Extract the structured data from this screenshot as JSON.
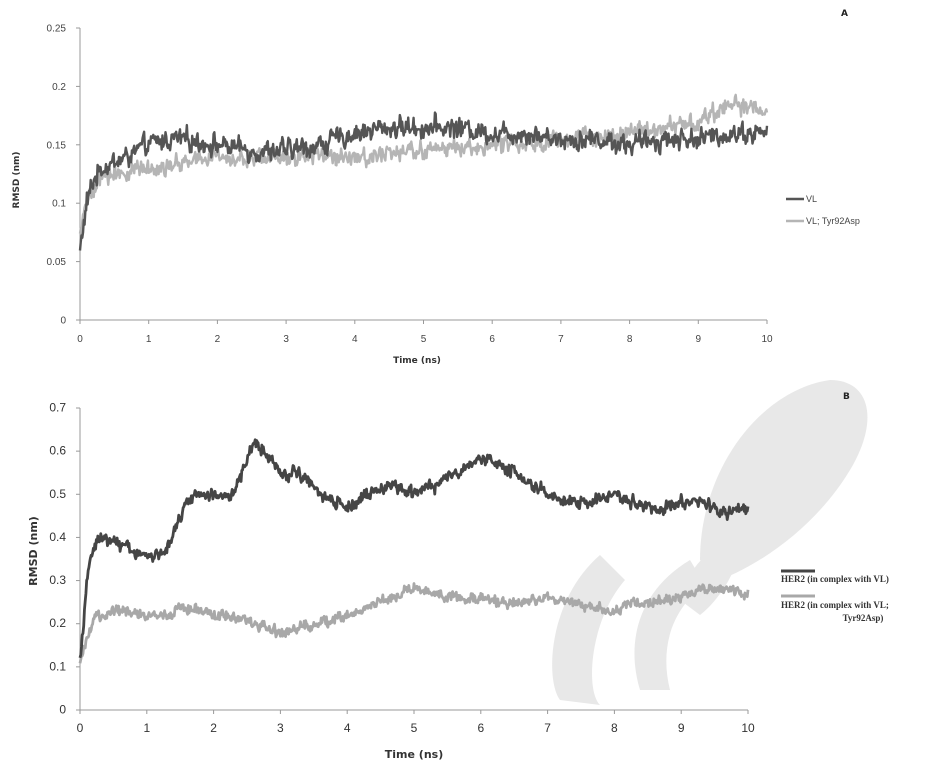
{
  "chart_data": [
    {
      "type": "line",
      "panel_label": "A",
      "xlabel": "Time (ns)",
      "ylabel": "RMSD (nm)",
      "xlim": [
        0,
        10
      ],
      "ylim": [
        0,
        0.25
      ],
      "x_ticks": [
        "0",
        "1",
        "2",
        "3",
        "4",
        "5",
        "6",
        "7",
        "8",
        "9",
        "10"
      ],
      "y_ticks": [
        "0",
        "0.05",
        "0.1",
        "0.15",
        "0.2",
        "0.25"
      ],
      "legend_position": "right",
      "series": [
        {
          "name": "VL",
          "color": "#555555",
          "x": [
            0,
            0.05,
            0.1,
            0.2,
            0.3,
            0.5,
            0.7,
            1,
            1.3,
            1.5,
            2,
            2.5,
            3,
            3.5,
            4,
            4.5,
            5,
            5.5,
            6,
            6.5,
            7,
            7.5,
            8,
            8.5,
            9,
            9.5,
            10
          ],
          "y": [
            0.06,
            0.08,
            0.1,
            0.12,
            0.13,
            0.135,
            0.14,
            0.15,
            0.155,
            0.155,
            0.15,
            0.145,
            0.145,
            0.15,
            0.16,
            0.165,
            0.165,
            0.165,
            0.16,
            0.16,
            0.155,
            0.155,
            0.15,
            0.155,
            0.155,
            0.16,
            0.16
          ],
          "noise": 0.012
        },
        {
          "name": "VL; Tyr92Asp",
          "color": "#b5b5b5",
          "x": [
            0,
            0.05,
            0.1,
            0.2,
            0.3,
            0.5,
            0.7,
            1,
            1.3,
            1.5,
            2,
            2.5,
            3,
            3.5,
            4,
            4.5,
            5,
            5.5,
            6,
            6.5,
            7,
            7.5,
            8,
            8.5,
            9,
            9.5,
            10
          ],
          "y": [
            0.07,
            0.09,
            0.1,
            0.11,
            0.12,
            0.125,
            0.128,
            0.13,
            0.133,
            0.135,
            0.14,
            0.138,
            0.14,
            0.142,
            0.14,
            0.142,
            0.145,
            0.148,
            0.15,
            0.152,
            0.155,
            0.155,
            0.16,
            0.165,
            0.17,
            0.185,
            0.18
          ],
          "noise": 0.01
        }
      ]
    },
    {
      "type": "line",
      "panel_label": "B",
      "xlabel": "Time (ns)",
      "ylabel": "RMSD (nm)",
      "xlim": [
        0,
        10
      ],
      "ylim": [
        0,
        0.7
      ],
      "x_ticks": [
        "0",
        "1",
        "2",
        "3",
        "4",
        "5",
        "6",
        "7",
        "8",
        "9",
        "10"
      ],
      "y_ticks": [
        "0",
        "0.1",
        "0.2",
        "0.3",
        "0.4",
        "0.5",
        "0.6",
        "0.7"
      ],
      "legend_position": "right",
      "series": [
        {
          "name": "HER2 (in complex with VL)",
          "color": "#454545",
          "x": [
            0,
            0.05,
            0.1,
            0.2,
            0.3,
            0.5,
            0.7,
            0.9,
            1.1,
            1.3,
            1.5,
            1.7,
            2,
            2.3,
            2.5,
            2.6,
            2.8,
            3,
            3.3,
            3.6,
            4,
            4.3,
            4.6,
            5,
            5.3,
            5.6,
            6,
            6.2,
            6.5,
            6.8,
            7,
            7.3,
            7.6,
            8,
            8.3,
            8.6,
            9,
            9.3,
            9.6,
            10
          ],
          "y": [
            0.12,
            0.2,
            0.3,
            0.38,
            0.4,
            0.39,
            0.38,
            0.36,
            0.35,
            0.38,
            0.45,
            0.5,
            0.5,
            0.5,
            0.58,
            0.62,
            0.6,
            0.55,
            0.55,
            0.5,
            0.47,
            0.5,
            0.52,
            0.5,
            0.52,
            0.55,
            0.58,
            0.58,
            0.55,
            0.52,
            0.5,
            0.48,
            0.48,
            0.5,
            0.48,
            0.47,
            0.48,
            0.48,
            0.46,
            0.47
          ],
          "noise": 0.02
        },
        {
          "name": "HER2 (in complex with VL; Tyr92Asp)",
          "color": "#a8a8a8",
          "x": [
            0,
            0.05,
            0.1,
            0.2,
            0.3,
            0.5,
            0.7,
            1,
            1.3,
            1.5,
            2,
            2.5,
            2.8,
            3,
            3.3,
            3.6,
            4,
            4.3,
            4.6,
            5,
            5.3,
            5.6,
            6,
            6.3,
            6.6,
            7,
            7.3,
            7.6,
            8,
            8.3,
            8.6,
            9,
            9.3,
            9.6,
            10
          ],
          "y": [
            0.1,
            0.13,
            0.16,
            0.2,
            0.22,
            0.23,
            0.23,
            0.22,
            0.22,
            0.24,
            0.22,
            0.21,
            0.19,
            0.18,
            0.19,
            0.2,
            0.22,
            0.24,
            0.26,
            0.28,
            0.27,
            0.26,
            0.26,
            0.25,
            0.25,
            0.26,
            0.25,
            0.24,
            0.23,
            0.25,
            0.25,
            0.26,
            0.28,
            0.28,
            0.27
          ],
          "noise": 0.017
        }
      ]
    }
  ],
  "legend_b": [
    "HER2 (in complex with VL)",
    "HER2 (in complex with VL;",
    "Tyr92Asp)"
  ]
}
